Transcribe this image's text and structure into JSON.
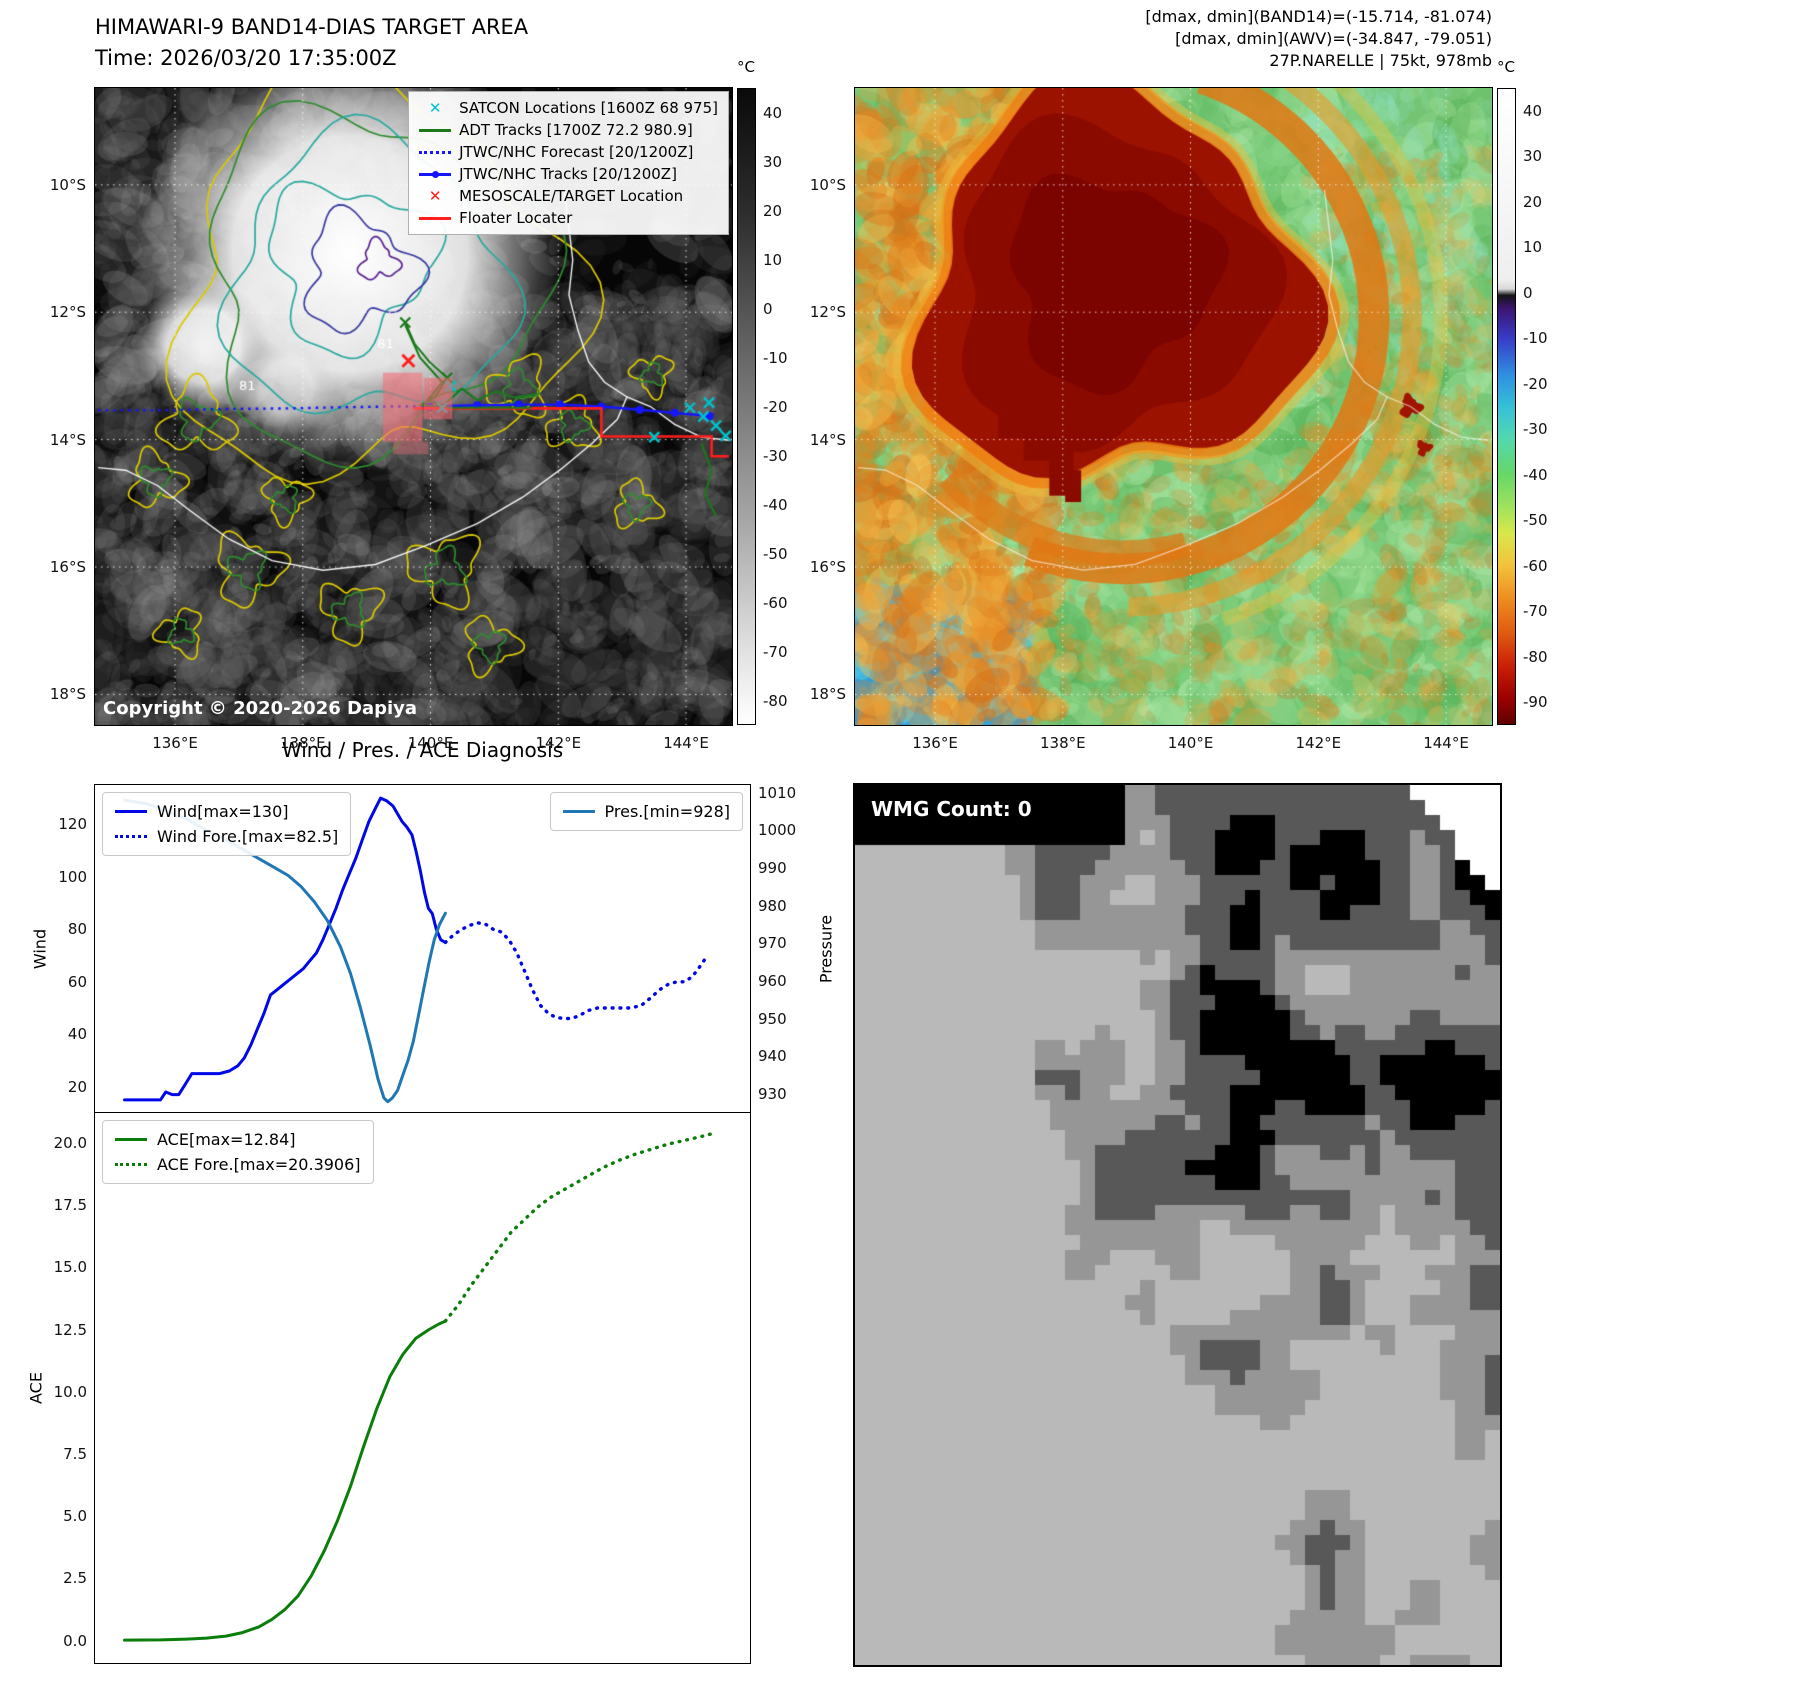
{
  "band14_panel": {
    "title": "HIMAWARI-9 BAND14-DIAS TARGET AREA",
    "time": "Time: 2026/03/20 17:35:00Z",
    "copyright": "Copyright © 2020-2026 Dapiya",
    "x_ticks": [
      "136°E",
      "138°E",
      "140°E",
      "142°E",
      "144°E"
    ],
    "y_ticks": [
      "10°S",
      "12°S",
      "14°S",
      "16°S",
      "18°S"
    ],
    "contour_labels": [
      "81",
      "81"
    ],
    "colorbar": {
      "unit": "°C",
      "ticks": [
        40,
        30,
        20,
        10,
        0,
        -10,
        -20,
        -30,
        -40,
        -50,
        -60,
        -70,
        -80
      ],
      "range": [
        45,
        -85
      ],
      "stops": [
        [
          "#0a0a0a",
          0
        ],
        [
          "#2e2e2e",
          0.2
        ],
        [
          "#6e6e6e",
          0.45
        ],
        [
          "#a6a6a6",
          0.68
        ],
        [
          "#e0e0e0",
          0.88
        ],
        [
          "#ffffff",
          1
        ]
      ]
    },
    "legend": [
      {
        "label": "SATCON Locations [1600Z 68 975]",
        "marker": "x",
        "color": "#00c2cc"
      },
      {
        "label": "ADT Tracks [1700Z 72.2 980.9]",
        "marker": "line",
        "color": "#1a7a1a"
      },
      {
        "label": "JTWC/NHC Forecast [20/1200Z]",
        "marker": "dotted",
        "color": "#1515ff"
      },
      {
        "label": "JTWC/NHC Tracks [20/1200Z]",
        "marker": "line-dot",
        "color": "#1515ff"
      },
      {
        "label": "MESOSCALE/TARGET Location",
        "marker": "x",
        "color": "#ff1e1e"
      },
      {
        "label": "Floater Locater",
        "marker": "line",
        "color": "#ff1e1e"
      }
    ]
  },
  "awv_panel": {
    "header_lines": [
      "[dmax, dmin](BAND14)=(-15.714, -81.074)",
      "[dmax, dmin](AWV)=(-34.847, -79.051)",
      "27P.NARELLE | 75kt, 978mb"
    ],
    "x_ticks": [
      "136°E",
      "138°E",
      "140°E",
      "142°E",
      "144°E"
    ],
    "y_ticks": [
      "10°S",
      "12°S",
      "14°S",
      "16°S",
      "18°S"
    ],
    "colorbar": {
      "unit": "°C",
      "ticks": [
        40,
        30,
        20,
        10,
        0,
        -10,
        -20,
        -30,
        -40,
        -50,
        -60,
        -70,
        -80,
        -90
      ],
      "range": [
        45,
        -95
      ],
      "stops": [
        [
          "#ffffff",
          0
        ],
        [
          "#efefef",
          0.3
        ],
        [
          "#d8d8d8",
          0.315
        ],
        [
          "#141414",
          0.325
        ],
        [
          "#3c1470",
          0.345
        ],
        [
          "#383cc8",
          0.393
        ],
        [
          "#2f8fe0",
          0.45
        ],
        [
          "#35c0d8",
          0.5
        ],
        [
          "#52d8b0",
          0.55
        ],
        [
          "#66d866",
          0.607
        ],
        [
          "#96e060",
          0.65
        ],
        [
          "#d8e84a",
          0.7
        ],
        [
          "#f2c33a",
          0.75
        ],
        [
          "#ee9020",
          0.8
        ],
        [
          "#e05a10",
          0.857
        ],
        [
          "#c81e06",
          0.91
        ],
        [
          "#9a0000",
          0.96
        ],
        [
          "#600000",
          1
        ]
      ]
    }
  },
  "diagnosis": {
    "title": "Wind / Pres. / ACE Diagnosis"
  },
  "wmg_panel": {
    "label": "WMG Count: 0"
  },
  "chart_data": [
    {
      "type": "line",
      "name": "wind-pressure",
      "title": "Wind / Pres. / ACE Diagnosis",
      "ylabel": "Wind",
      "ylabel_right": "Pressure",
      "xlim": [
        0,
        1
      ],
      "ylim": [
        10,
        135
      ],
      "ylim_right": [
        925,
        1012
      ],
      "yticks": [
        20,
        40,
        60,
        80,
        100,
        120
      ],
      "ytick_decimals": 0,
      "yticks_right": [
        930,
        940,
        950,
        960,
        970,
        980,
        990,
        1000,
        1010
      ],
      "series": [
        {
          "name": "Wind[max=130]",
          "axis": "left",
          "style": "solid",
          "color": "#0008e8",
          "points": [
            [
              0.045,
              15
            ],
            [
              0.09,
              15
            ],
            [
              0.1,
              15
            ],
            [
              0.108,
              18
            ],
            [
              0.118,
              17
            ],
            [
              0.128,
              17
            ],
            [
              0.138,
              21
            ],
            [
              0.148,
              25
            ],
            [
              0.17,
              25
            ],
            [
              0.19,
              25
            ],
            [
              0.205,
              26
            ],
            [
              0.218,
              28
            ],
            [
              0.228,
              31
            ],
            [
              0.238,
              36
            ],
            [
              0.248,
              42
            ],
            [
              0.258,
              48
            ],
            [
              0.268,
              55
            ],
            [
              0.278,
              57
            ],
            [
              0.288,
              59
            ],
            [
              0.298,
              61
            ],
            [
              0.308,
              63
            ],
            [
              0.318,
              65
            ],
            [
              0.328,
              68
            ],
            [
              0.338,
              71
            ],
            [
              0.348,
              76
            ],
            [
              0.358,
              82
            ],
            [
              0.368,
              88
            ],
            [
              0.378,
              95
            ],
            [
              0.388,
              101
            ],
            [
              0.398,
              107
            ],
            [
              0.408,
              114
            ],
            [
              0.418,
              121
            ],
            [
              0.428,
              126
            ],
            [
              0.436,
              130
            ],
            [
              0.445,
              129
            ],
            [
              0.455,
              127
            ],
            [
              0.462,
              124
            ],
            [
              0.469,
              121
            ],
            [
              0.476,
              119
            ],
            [
              0.484,
              116
            ],
            [
              0.49,
              110
            ],
            [
              0.497,
              102
            ],
            [
              0.503,
              94
            ],
            [
              0.509,
              88
            ],
            [
              0.515,
              86
            ],
            [
              0.521,
              80
            ],
            [
              0.528,
              76
            ],
            [
              0.535,
              75
            ]
          ]
        },
        {
          "name": "Wind Fore.[max=82.5]",
          "axis": "left",
          "style": "dotted",
          "color": "#0008e8",
          "points": [
            [
              0.535,
              75
            ],
            [
              0.548,
              78
            ],
            [
              0.56,
              80
            ],
            [
              0.572,
              81.5
            ],
            [
              0.584,
              82.5
            ],
            [
              0.596,
              82
            ],
            [
              0.608,
              80
            ],
            [
              0.62,
              79
            ],
            [
              0.632,
              76
            ],
            [
              0.644,
              71
            ],
            [
              0.656,
              64
            ],
            [
              0.668,
              57
            ],
            [
              0.68,
              51
            ],
            [
              0.692,
              48
            ],
            [
              0.703,
              46.5
            ],
            [
              0.715,
              46
            ],
            [
              0.727,
              46
            ],
            [
              0.739,
              47
            ],
            [
              0.752,
              49
            ],
            [
              0.767,
              50
            ],
            [
              0.782,
              50
            ],
            [
              0.8,
              50
            ],
            [
              0.818,
              50
            ],
            [
              0.834,
              51
            ],
            [
              0.849,
              54
            ],
            [
              0.862,
              57
            ],
            [
              0.875,
              59
            ],
            [
              0.888,
              60
            ],
            [
              0.9,
              60
            ],
            [
              0.912,
              62
            ],
            [
              0.924,
              66
            ],
            [
              0.935,
              70
            ]
          ]
        },
        {
          "name": "Pres.[min=928]",
          "axis": "right",
          "style": "solid",
          "color": "#1f77b4",
          "points": [
            [
              0.045,
              1008
            ],
            [
              0.08,
              1007
            ],
            [
              0.11,
              1005
            ],
            [
              0.14,
              1003
            ],
            [
              0.17,
              1000
            ],
            [
              0.195,
              998
            ],
            [
              0.215,
              996
            ],
            [
              0.235,
              994
            ],
            [
              0.255,
              992
            ],
            [
              0.275,
              990
            ],
            [
              0.295,
              988
            ],
            [
              0.315,
              985
            ],
            [
              0.335,
              981
            ],
            [
              0.355,
              976
            ],
            [
              0.375,
              969
            ],
            [
              0.39,
              962
            ],
            [
              0.405,
              953
            ],
            [
              0.42,
              943
            ],
            [
              0.432,
              934
            ],
            [
              0.441,
              929
            ],
            [
              0.447,
              928
            ],
            [
              0.454,
              929
            ],
            [
              0.462,
              931
            ],
            [
              0.47,
              935
            ],
            [
              0.478,
              939
            ],
            [
              0.486,
              944
            ],
            [
              0.494,
              951
            ],
            [
              0.502,
              958
            ],
            [
              0.51,
              965
            ],
            [
              0.518,
              971
            ],
            [
              0.526,
              975
            ],
            [
              0.535,
              978
            ]
          ]
        }
      ]
    },
    {
      "type": "line",
      "name": "ace",
      "ylabel": "ACE",
      "xlim": [
        0,
        1
      ],
      "ylim": [
        -0.9,
        21.2
      ],
      "yticks": [
        0,
        2.5,
        5,
        7.5,
        10,
        12.5,
        15,
        17.5,
        20
      ],
      "ytick_decimals": 1,
      "series": [
        {
          "name": "ACE[max=12.84]",
          "axis": "left",
          "style": "solid",
          "color": "#0a7d0a",
          "points": [
            [
              0.045,
              0.02
            ],
            [
              0.1,
              0.03
            ],
            [
              0.14,
              0.06
            ],
            [
              0.17,
              0.1
            ],
            [
              0.2,
              0.18
            ],
            [
              0.225,
              0.32
            ],
            [
              0.25,
              0.55
            ],
            [
              0.27,
              0.85
            ],
            [
              0.29,
              1.25
            ],
            [
              0.31,
              1.8
            ],
            [
              0.33,
              2.6
            ],
            [
              0.35,
              3.6
            ],
            [
              0.37,
              4.8
            ],
            [
              0.39,
              6.2
            ],
            [
              0.41,
              7.8
            ],
            [
              0.43,
              9.3
            ],
            [
              0.45,
              10.6
            ],
            [
              0.47,
              11.5
            ],
            [
              0.49,
              12.15
            ],
            [
              0.51,
              12.5
            ],
            [
              0.525,
              12.72
            ],
            [
              0.535,
              12.84
            ]
          ]
        },
        {
          "name": "ACE Fore.[max=20.3906]",
          "axis": "left",
          "style": "dotted",
          "color": "#0a7d0a",
          "points": [
            [
              0.535,
              12.84
            ],
            [
              0.555,
              13.5
            ],
            [
              0.575,
              14.3
            ],
            [
              0.595,
              15.0
            ],
            [
              0.615,
              15.7
            ],
            [
              0.635,
              16.4
            ],
            [
              0.655,
              16.9
            ],
            [
              0.675,
              17.4
            ],
            [
              0.695,
              17.8
            ],
            [
              0.715,
              18.1
            ],
            [
              0.735,
              18.4
            ],
            [
              0.755,
              18.7
            ],
            [
              0.775,
              19.0
            ],
            [
              0.8,
              19.3
            ],
            [
              0.825,
              19.55
            ],
            [
              0.85,
              19.75
            ],
            [
              0.875,
              19.95
            ],
            [
              0.9,
              20.1
            ],
            [
              0.925,
              20.25
            ],
            [
              0.945,
              20.39
            ]
          ]
        }
      ]
    }
  ]
}
